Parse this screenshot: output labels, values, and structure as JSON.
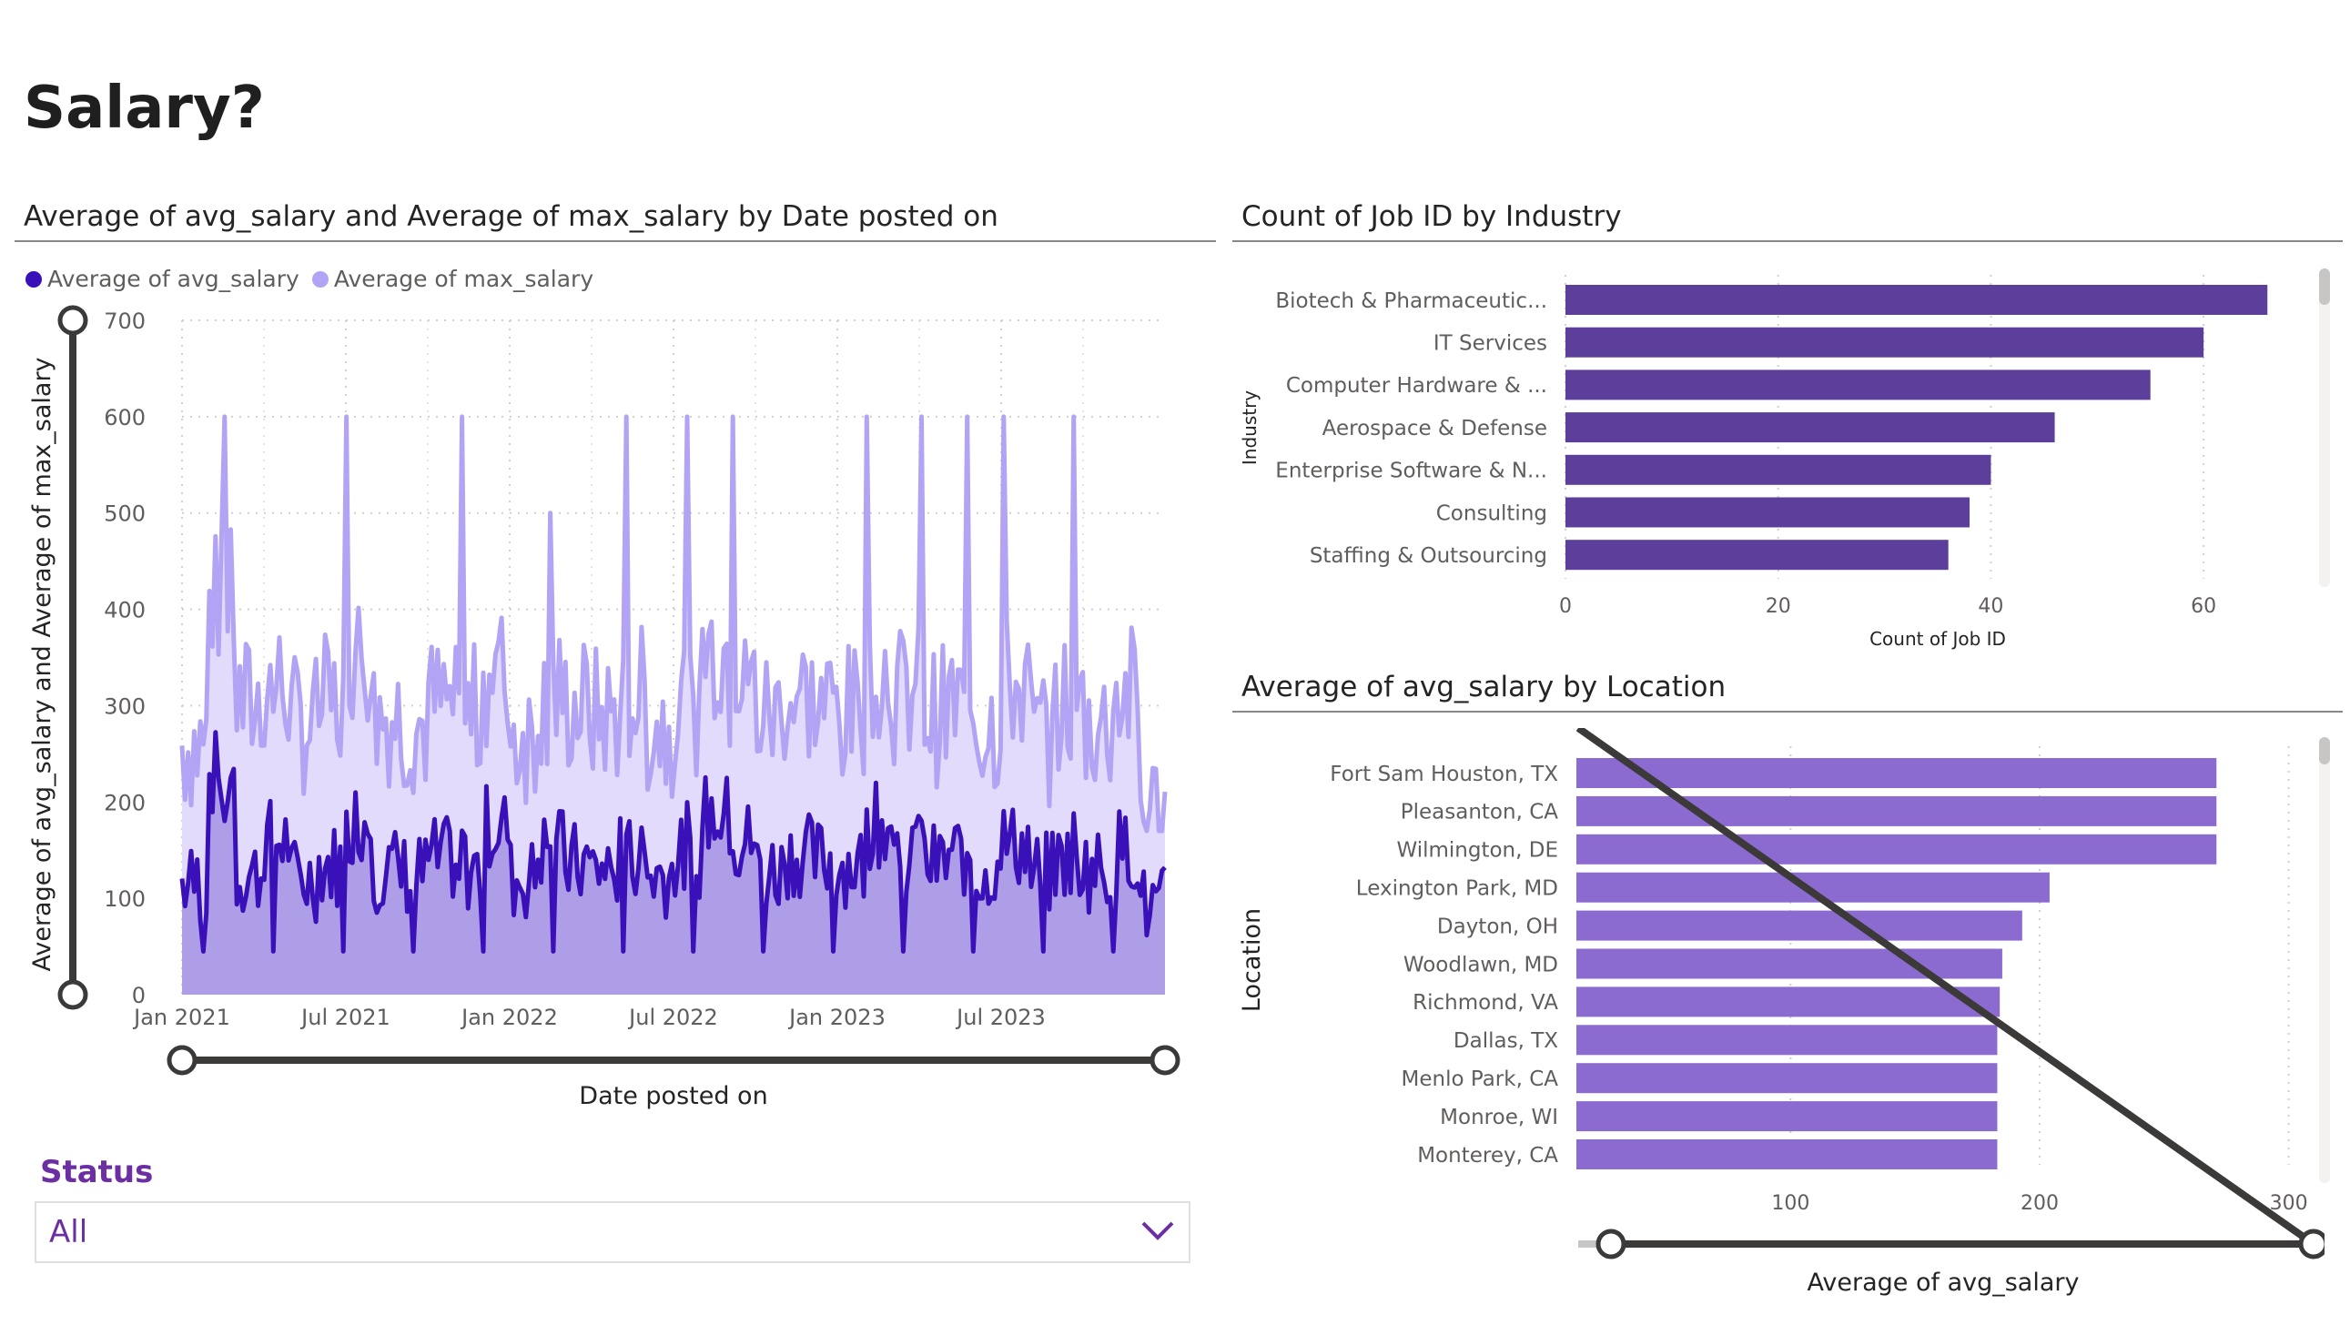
{
  "page": {
    "title": "Salary?"
  },
  "line_chart": {
    "title": "Average of avg_salary and Average of max_salary by Date posted on",
    "legend": [
      {
        "name": "Average of avg_salary",
        "color": "#3a10b8"
      },
      {
        "name": "Average of max_salary",
        "color": "#b3a3f5"
      }
    ],
    "y_label": "Average of avg_salary and Average of max_salary",
    "x_label": "Date posted on",
    "y_ticks": [
      "0",
      "100",
      "200",
      "300",
      "400",
      "500",
      "600",
      "700"
    ],
    "x_ticks": [
      "Jan 2021",
      "Jul 2021",
      "Jan 2022",
      "Jul 2022",
      "Jan 2023",
      "Jul 2023"
    ]
  },
  "industry_chart": {
    "title": "Count of Job ID by Industry",
    "y_label": "Industry",
    "x_label": "Count of Job ID",
    "x_ticks": [
      "0",
      "20",
      "40",
      "60"
    ],
    "bar_color": "#5b3f9a"
  },
  "location_chart": {
    "title": "Average of avg_salary by Location",
    "y_label": "Location",
    "x_label": "Average of avg_salary",
    "x_ticks": [
      "100",
      "200",
      "300"
    ],
    "bar_color": "#8c6bd1"
  },
  "status_slicer": {
    "label": "Status",
    "value": "All"
  },
  "chart_data": [
    {
      "type": "line",
      "title": "Average of avg_salary and Average of max_salary by Date posted on",
      "xlabel": "Date posted on",
      "ylabel": "Average of avg_salary and Average of max_salary",
      "ylim": [
        0,
        700
      ],
      "x_range": [
        "2021-01",
        "2023-12"
      ],
      "grid": true,
      "legend_position": "top-left",
      "x": [
        "2021-01",
        "2021-02",
        "2021-03",
        "2021-04",
        "2021-05",
        "2021-06",
        "2021-07",
        "2021-08",
        "2021-09",
        "2021-10",
        "2021-11",
        "2021-12",
        "2022-01",
        "2022-02",
        "2022-03",
        "2022-04",
        "2022-05",
        "2022-06",
        "2022-07",
        "2022-08",
        "2022-09",
        "2022-10",
        "2022-11",
        "2022-12",
        "2023-01",
        "2023-02",
        "2023-03",
        "2023-04",
        "2023-05",
        "2023-06",
        "2023-07",
        "2023-08",
        "2023-09",
        "2023-10",
        "2023-11",
        "2023-12"
      ],
      "series": [
        {
          "name": "Average of avg_salary",
          "values": [
            115,
            230,
            125,
            160,
            120,
            135,
            180,
            130,
            125,
            140,
            130,
            175,
            120,
            150,
            135,
            130,
            145,
            125,
            140,
            185,
            160,
            130,
            145,
            140,
            135,
            175,
            150,
            135,
            145,
            130,
            155,
            125,
            140,
            130,
            150,
            90
          ]
        },
        {
          "name": "Average of max_salary",
          "values": [
            260,
            410,
            300,
            320,
            280,
            300,
            350,
            290,
            280,
            300,
            290,
            330,
            270,
            310,
            300,
            290,
            310,
            280,
            300,
            360,
            320,
            290,
            310,
            300,
            290,
            340,
            310,
            290,
            300,
            280,
            320,
            270,
            300,
            280,
            310,
            190
          ]
        }
      ],
      "peaks_max_salary": [
        600,
        600,
        600,
        500,
        600,
        600,
        600,
        600,
        600,
        600,
        600,
        600
      ]
    },
    {
      "type": "bar",
      "orientation": "horizontal",
      "title": "Count of Job ID by Industry",
      "xlabel": "Count of Job ID",
      "ylabel": "Industry",
      "xlim": [
        0,
        70
      ],
      "categories": [
        "Biotech & Pharmaceutic...",
        "IT Services",
        "Computer Hardware & ...",
        "Aerospace & Defense",
        "Enterprise Software & N...",
        "Consulting",
        "Staffing & Outsourcing"
      ],
      "values": [
        66,
        60,
        55,
        46,
        40,
        38,
        36
      ]
    },
    {
      "type": "bar",
      "orientation": "horizontal",
      "title": "Average of avg_salary by Location",
      "xlabel": "Average of avg_salary",
      "ylabel": "Location",
      "xlim": [
        14,
        310
      ],
      "categories": [
        "Fort Sam Houston, TX",
        "Pleasanton, CA",
        "Wilmington, DE",
        "Lexington Park, MD",
        "Dayton, OH",
        "Woodlawn, MD",
        "Richmond, VA",
        "Dallas, TX",
        "Menlo Park, CA",
        "Monroe, WI",
        "Monterey, CA"
      ],
      "values": [
        271,
        271,
        271,
        204,
        193,
        185,
        184,
        183,
        183,
        183,
        183
      ]
    }
  ]
}
